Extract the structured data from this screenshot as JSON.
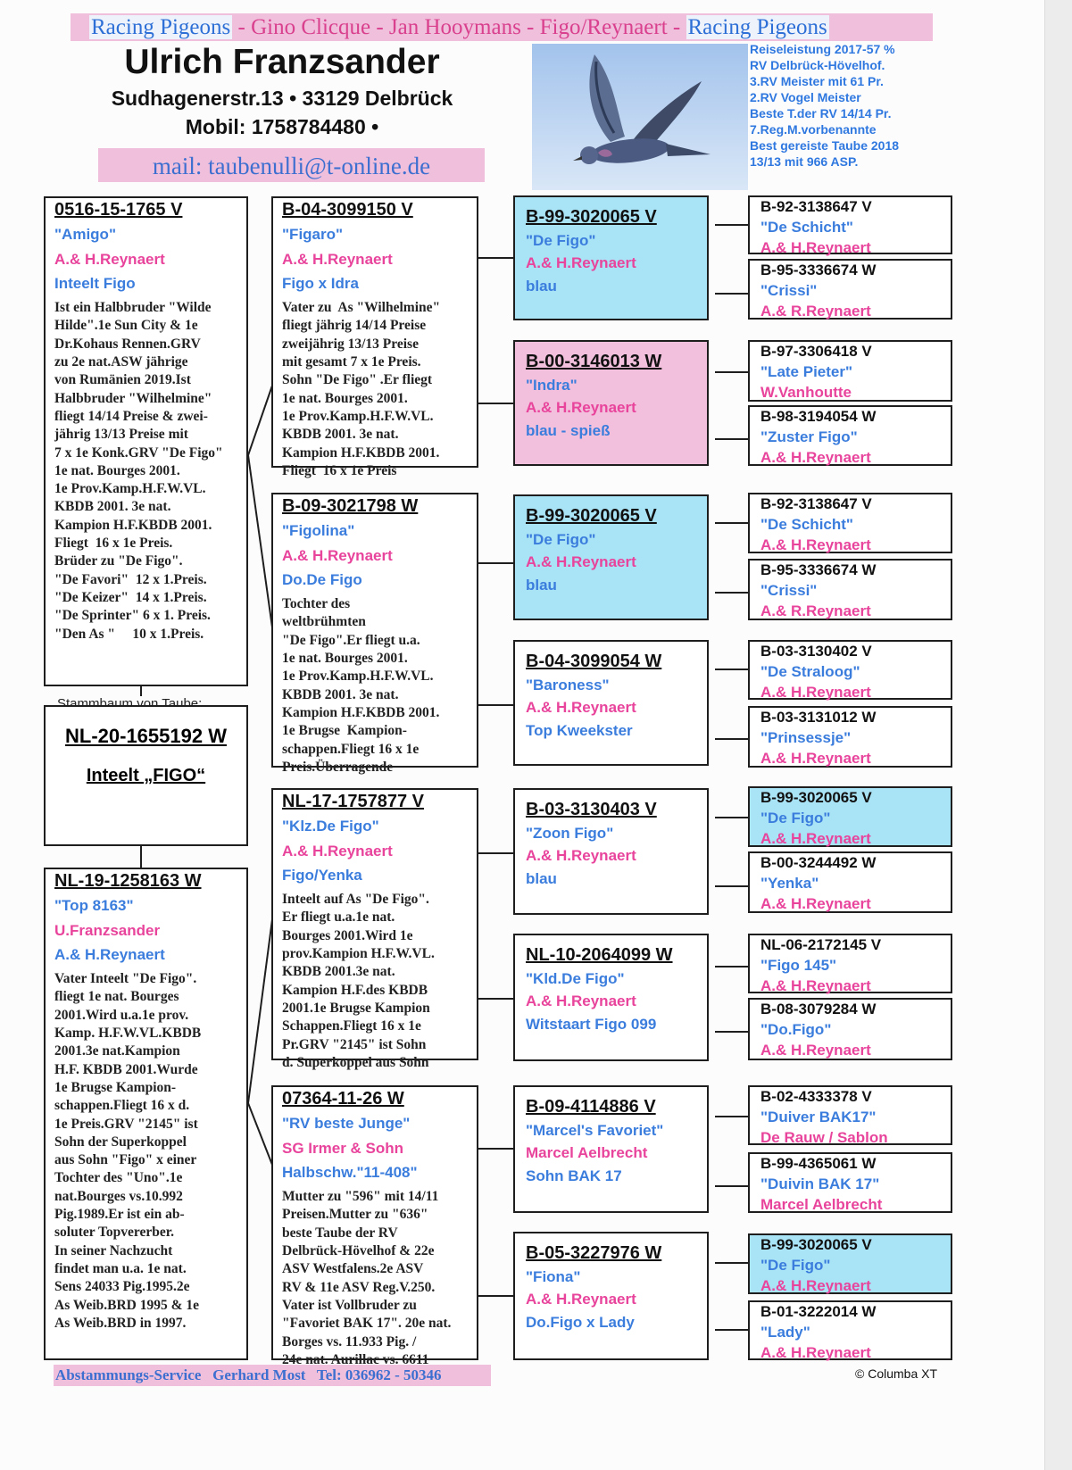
{
  "header": {
    "band_left": "Racing Pigeons",
    "band_middle": " - Gino Clicque - Jan Hooymans - Figo/Reynaert - ",
    "band_right": "Racing Pigeons",
    "owner_name": "Ulrich Franzsander",
    "address": "Sudhagenerstr.13 • 33129 Delbrück",
    "mobile": "Mobil: 1758784480 •",
    "mail": "mail: taubenulli@t-online.de",
    "photo_icon": "flying-pigeon-photo",
    "performance": "Reiseleistung 2017-57 %\nRV Delbrück-Hövelhof.\n3.RV Meister mit 61 Pr.\n2.RV Vogel Meister\nBeste T.der RV 14/14 Pr.\n7.Reg.M.vorbenannte\nBest gereiste Taube 2018\n13/13 mit 966 ASP."
  },
  "colors": {
    "name_blue": "#3b7ddd",
    "owner_pink": "#e8449c",
    "highlight_blue": "#a9e3f6",
    "highlight_pink": "#f2c0dc"
  },
  "subject": {
    "label": "Stammbaum von Taube:",
    "ring": "NL-20-1655192 W",
    "title": "Inteelt „FIGO“"
  },
  "parents": [
    {
      "ring": "0516-15-1765 V",
      "name": "\"Amigo\"",
      "owner": "A.& H.Reynaert",
      "extra": "Inteelt Figo",
      "notes": "Ist ein Halbbruder \"Wilde\nHilde\".1e Sun City & 1e\nDr.Kohaus Rennen.GRV\nzu 2e nat.ASW jährige\nvon Rumänien 2019.Ist\nHalbbruder \"Wilhelmine\"\nfliegt 14/14 Preise & zwei-\njährig 13/13 Preise mit\n7 x 1e Konk.GRV \"De Figo\"\n1e nat. Bourges 2001.\n1e Prov.Kamp.H.F.W.VL.\nKBDB 2001. 3e nat.\nKampion H.F.KBDB 2001.\nFliegt  16 x 1e Preis.\nBrüder zu \"De Figo\".\n\"De Favori\"  12 x 1.Preis.\n\"De Keizer\"  14 x 1.Preis.\n\"De Sprinter\" 6 x 1. Preis.\n\"Den As \"     10 x 1.Preis."
    },
    {
      "ring": "NL-19-1258163 W",
      "name": "\"Top 8163\"",
      "owner": "U.Franzsander",
      "extra": "A.& H.Reynaert",
      "notes": "Vater Inteelt \"De Figo\".\nfliegt 1e nat. Bourges\n2001.Wird u.a.1e prov.\nKamp. H.F.W.VL.KBDB\n2001.3e nat.Kampion\nH.F. KBDB 2001.Wurde\n1e Brugse Kampion-\nschappen.Fliegt 16 x d.\n1e Preis.GRV \"2145\" ist\nSohn der Superkoppel\naus Sohn \"Figo\" x einer\nTochter des \"Uno\".1e\nnat.Bourges vs.10.992\nPig.1989.Er ist ein ab-\nsoluter Topvererber.\nIn seiner Nachzucht\nfindet man u.a. 1e nat.\nSens 24033 Pig.1995.2e\nAs Weib.BRD 1995 & 1e\nAs Weib.BRD in 1997."
    }
  ],
  "grandparents": [
    {
      "ring": "B-04-3099150 V",
      "name": "\"Figaro\"",
      "owner": "A.& H.Reynaert",
      "extra": "Figo x Idra",
      "notes": "Vater zu  As \"Wilhelmine\"\nfliegt jährig 14/14 Preise\nzweijährig 13/13 Preise\nmit gesamt 7 x 1e Preis.\nSohn \"De Figo\" .Er fliegt\n1e nat. Bourges 2001.\n1e Prov.Kamp.H.F.W.VL.\nKBDB 2001. 3e nat.\nKampion H.F.KBDB 2001.\nFliegt  16 x 1e Preis"
    },
    {
      "ring": "B-09-3021798 W",
      "name": "\"Figolina\"",
      "owner": "A.& H.Reynaert",
      "extra": "Do.De Figo",
      "notes": "Tochter des\nweltbrühmten\n\"De Figo\".Er fliegt u.a.\n1e nat. Bourges 2001.\n1e Prov.Kamp.H.F.W.VL.\nKBDB 2001. 3e nat.\nKampion H.F.KBDB 2001.\n1e Brugse  Kampion-\nschappen.Fliegt 16 x 1e\nPreis.Überragende"
    },
    {
      "ring": "NL-17-1757877 V",
      "name": "\"Klz.De Figo\"",
      "owner": "A.& H.Reynaert",
      "extra": "Figo/Yenka",
      "notes": "Inteelt auf As \"De Figo\".\nEr fliegt u.a.1e nat.\nBourges 2001.Wird 1e\nprov.Kampion H.F.W.VL.\nKBDB 2001.3e nat.\nKampion H.F.des KBDB\n2001.1e Brugse Kampion\nSchappen.Fliegt 16 x 1e\nPr.GRV \"2145\" ist Sohn\nd. Superkoppel aus Sohn"
    },
    {
      "ring": "07364-11-26 W",
      "name": "\"RV beste Junge\"",
      "owner": "SG Irmer & Sohn",
      "extra": "Halbschw.\"11-408\"",
      "notes": "Mutter zu \"596\" mit 14/11\nPreisen.Mutter zu \"636\"\nbeste Taube der RV\nDelbrück-Hövelhof & 22e\nASV Westfalens.2e ASV\nRV & 11e ASV Reg.V.250.\nVater ist Vollbruder zu\n\"Favoriet BAK 17\". 20e nat.\nBorges vs. 11.933 Pig. /\n24e nat. Aurillac vs. 6611"
    }
  ],
  "great_grandparents": [
    {
      "ring": "B-99-3020065 V",
      "name": "\"De Figo\"",
      "owner": "A.& H.Reynaert",
      "extra": "blau",
      "highlight": "blue"
    },
    {
      "ring": "B-00-3146013 W",
      "name": "\"Indra\"",
      "owner": "A.& H.Reynaert",
      "extra": "blau - spieß",
      "highlight": "pink"
    },
    {
      "ring": "B-99-3020065 V",
      "name": "\"De Figo\"",
      "owner": "A.& H.Reynaert",
      "extra": "blau",
      "highlight": "blue"
    },
    {
      "ring": "B-04-3099054 W",
      "name": "\"Baroness\"",
      "owner": "A.& H.Reynaert",
      "extra": "Top Kweekster"
    },
    {
      "ring": "B-03-3130403 V",
      "name": "\"Zoon Figo\"",
      "owner": "A.& H.Reynaert",
      "extra": "blau"
    },
    {
      "ring": "NL-10-2064099 W",
      "name": "\"Kld.De Figo\"",
      "owner": "A.& H.Reynaert",
      "extra": "Witstaart Figo 099"
    },
    {
      "ring": "B-09-4114886 V",
      "name": "\"Marcel's Favoriet\"",
      "owner": "Marcel Aelbrecht",
      "extra": "Sohn BAK 17"
    },
    {
      "ring": "B-05-3227976 W",
      "name": "\"Fiona\"",
      "owner": "A.& H.Reynaert",
      "extra": "Do.Figo x Lady"
    }
  ],
  "gg_grandparents": [
    {
      "ring": "B-92-3138647 V",
      "name": "\"De Schicht\"",
      "owner": "A.& H.Reynaert"
    },
    {
      "ring": "B-95-3336674 W",
      "name": "\"Crissi\"",
      "owner": "A.& R.Reynaert"
    },
    {
      "ring": "B-97-3306418 V",
      "name": "\"Late Pieter\"",
      "owner": "W.Vanhoutte"
    },
    {
      "ring": "B-98-3194054 W",
      "name": "\"Zuster Figo\"",
      "owner": "A.& H.Reynaert"
    },
    {
      "ring": "B-92-3138647 V",
      "name": "\"De Schicht\"",
      "owner": "A.& H.Reynaert"
    },
    {
      "ring": "B-95-3336674 W",
      "name": "\"Crissi\"",
      "owner": "A.& R.Reynaert"
    },
    {
      "ring": "B-03-3130402 V",
      "name": "\"De Straloog\"",
      "owner": "A.& H.Reynaert"
    },
    {
      "ring": "B-03-3131012 W",
      "name": "\"Prinsessje\"",
      "owner": "A.& H.Reynaert"
    },
    {
      "ring": "B-99-3020065 V",
      "name": "\"De Figo\"",
      "owner": "A.& H.Reynaert",
      "highlight": "blue"
    },
    {
      "ring": "B-00-3244492 W",
      "name": "\"Yenka\"",
      "owner": "A.& H.Reynaert"
    },
    {
      "ring": "NL-06-2172145 V",
      "name": "\"Figo 145\"",
      "owner": "A.& H.Reynaert"
    },
    {
      "ring": "B-08-3079284 W",
      "name": "\"Do.Figo\"",
      "owner": "A.& H.Reynaert"
    },
    {
      "ring": "B-02-4333378 V",
      "name": "\"Duiver BAK17\"",
      "owner": "De Rauw / Sablon"
    },
    {
      "ring": "B-99-4365061 W",
      "name": "\"Duivin BAK 17\"",
      "owner": "Marcel Aelbrecht"
    },
    {
      "ring": "B-99-3020065 V",
      "name": "\"De Figo\"",
      "owner": "A.& H.Reynaert",
      "highlight": "blue"
    },
    {
      "ring": "B-01-3222014 W",
      "name": "\"Lady\"",
      "owner": "A.& H.Reynaert"
    }
  ],
  "footer": {
    "service": "Abstammungs-Service   Gerhard Most   Tel: 036962 - 50346",
    "copyright": "© Columba XT"
  }
}
